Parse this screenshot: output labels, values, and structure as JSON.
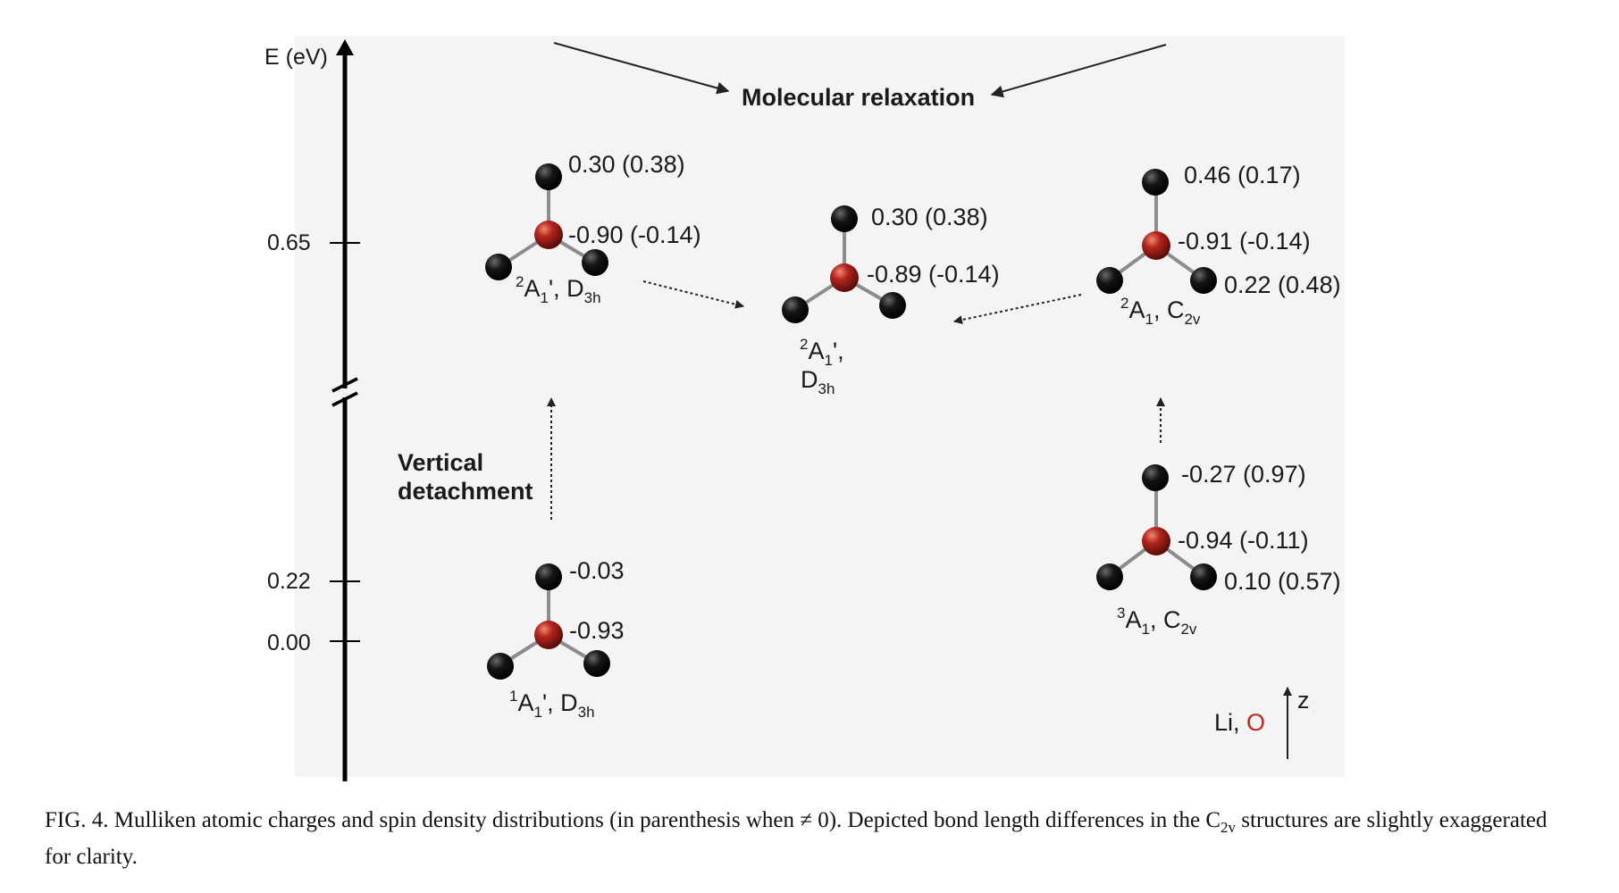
{
  "axis": {
    "label": "E (eV)",
    "ticks": [
      "0.65",
      "0.22",
      "0.00"
    ]
  },
  "annotations": {
    "relaxation": "Molecular relaxation",
    "vertical_line1": "Vertical",
    "vertical_line2": "detachment"
  },
  "states": {
    "anion": {
      "term_sup": "1",
      "term_base": "A",
      "term_sub": "1",
      "term_tail": "', D",
      "sym_sub": "3h",
      "charge_top": "-0.03",
      "charge_center": "-0.93"
    },
    "vd_d3h": {
      "term_sup": "2",
      "term_base": "A",
      "term_sub": "1",
      "term_tail": "', D",
      "sym_sub": "3h",
      "charge_top": "0.30 (0.38)",
      "charge_center": "-0.90 (-0.14)"
    },
    "relaxed_d3h": {
      "term_sup": "2",
      "term_base": "A",
      "term_sub": "1",
      "term_tail": "',",
      "sym_base": "D",
      "sym_sub": "3h",
      "charge_top": "0.30 (0.38)",
      "charge_center": "-0.89 (-0.14)"
    },
    "vd_c2v": {
      "term_sup": "2",
      "term_base": "A",
      "term_sub": "1",
      "term_tail": ", C",
      "sym_sub": "2v",
      "charge_top": "0.46 (0.17)",
      "charge_center": "-0.91 (-0.14)",
      "charge_right": "0.22 (0.48)"
    },
    "triplet_c2v": {
      "term_sup": "3",
      "term_base": "A",
      "term_sub": "1",
      "term_tail": ", C",
      "sym_sub": "2v",
      "charge_top": "-0.27 (0.97)",
      "charge_center": "-0.94 (-0.11)",
      "charge_right": "0.10 (0.57)"
    }
  },
  "legend": {
    "li": "Li, ",
    "o": "O",
    "axis": "z"
  },
  "caption": {
    "part1": "FIG. 4.  Mulliken atomic charges and spin density distributions (in parenthesis when ≠ 0). Depicted bond length differences in the C",
    "sub": "2v",
    "part2": " structures are slightly exaggerated for clarity."
  },
  "colors": {
    "lithium": "#111111",
    "oxygen": "#b3251d",
    "o_label": "#c0271b"
  }
}
